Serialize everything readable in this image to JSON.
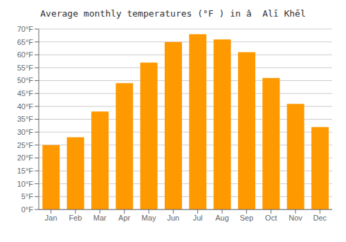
{
  "chart_data": {
    "type": "bar",
    "title": "Average monthly temperatures (°F ) in â  Alī Khēl",
    "categories": [
      "Jan",
      "Feb",
      "Mar",
      "Apr",
      "May",
      "Jun",
      "Jul",
      "Aug",
      "Sep",
      "Oct",
      "Nov",
      "Dec"
    ],
    "values": [
      25,
      28,
      38,
      49,
      57,
      65,
      68,
      66,
      61,
      51,
      41,
      32
    ],
    "color": "#ff9900",
    "ylim": [
      0,
      70
    ],
    "yticks": [
      {
        "value": 0,
        "label": "0°F"
      },
      {
        "value": 5,
        "label": "5°F"
      },
      {
        "value": 10,
        "label": "10°F"
      },
      {
        "value": 15,
        "label": "15°F"
      },
      {
        "value": 20,
        "label": "20°F"
      },
      {
        "value": 25,
        "label": "25°F"
      },
      {
        "value": 30,
        "label": "30°F"
      },
      {
        "value": 35,
        "label": "35°F"
      },
      {
        "value": 40,
        "label": "40°F"
      },
      {
        "value": 45,
        "label": "45°F"
      },
      {
        "value": 50,
        "label": "50°F"
      },
      {
        "value": 55,
        "label": "55°F"
      },
      {
        "value": 60,
        "label": "60°F"
      },
      {
        "value": 65,
        "label": "65°F"
      },
      {
        "value": 70,
        "label": "70°F"
      }
    ],
    "grid": true
  }
}
